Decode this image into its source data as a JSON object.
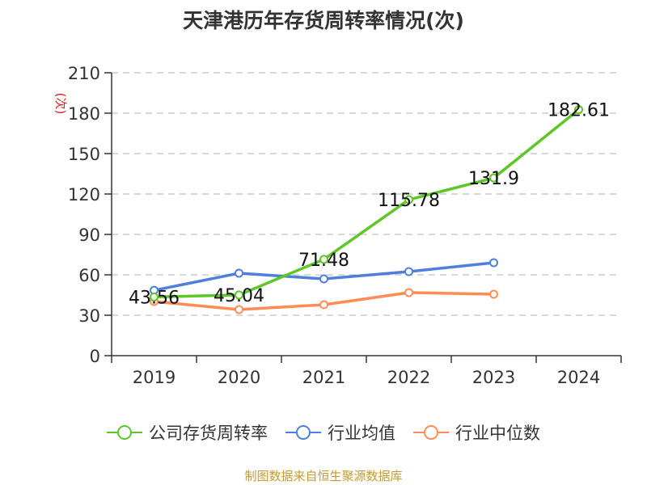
{
  "title": "天津港历年存货周转率情况(次)",
  "source": "制图数据来自恒生聚源数据库",
  "y_unit": "(次)",
  "colors": {
    "company": "#5cc726",
    "industry_avg": "#4e7fdd",
    "industry_median": "#ff8c55"
  },
  "chart_data": {
    "type": "line",
    "title": "天津港历年存货周转率情况(次)",
    "xlabel": "",
    "ylabel": "(次)",
    "categories": [
      "2019",
      "2020",
      "2021",
      "2022",
      "2023",
      "2024"
    ],
    "ylim": [
      0,
      210
    ],
    "yticks": [
      0,
      30,
      60,
      90,
      120,
      150,
      180,
      210
    ],
    "grid": true,
    "legend_position": "bottom",
    "series": [
      {
        "name": "公司存货周转率",
        "values": [
          43.56,
          45.04,
          71.48,
          115.78,
          131.9,
          182.61
        ],
        "labels": [
          "43.56",
          "45.04",
          "71.48",
          "115.78",
          "131.9",
          "182.61"
        ]
      },
      {
        "name": "行业均值",
        "values": [
          48.5,
          61.2,
          57.0,
          62.4,
          69.0,
          null
        ]
      },
      {
        "name": "行业中位数",
        "values": [
          40.2,
          34.2,
          37.8,
          46.8,
          45.6,
          null
        ]
      }
    ]
  },
  "legend": [
    {
      "label": "公司存货周转率"
    },
    {
      "label": "行业均值"
    },
    {
      "label": "行业中位数"
    }
  ]
}
